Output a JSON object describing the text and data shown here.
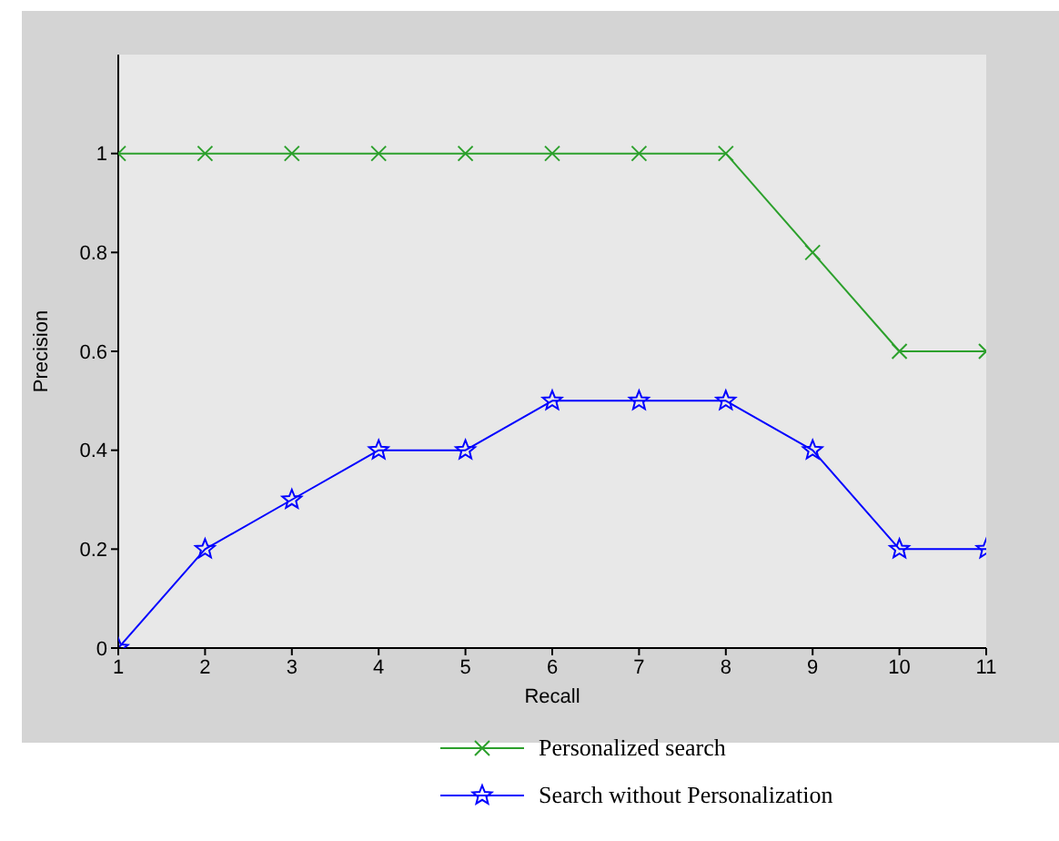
{
  "chart_data": {
    "type": "line",
    "xlabel": "Recall",
    "ylabel": "Precision",
    "x": [
      1,
      2,
      3,
      4,
      5,
      6,
      7,
      8,
      9,
      10,
      11
    ],
    "series": [
      {
        "name": "Personalized search",
        "color": "#2ca02c",
        "marker": "cross",
        "values": [
          1,
          1,
          1,
          1,
          1,
          1,
          1,
          1,
          0.8,
          0.6,
          0.6
        ]
      },
      {
        "name": "Search without Personalization",
        "color": "#0000ff",
        "marker": "star",
        "values": [
          0,
          0.2,
          0.3,
          0.4,
          0.4,
          0.5,
          0.5,
          0.5,
          0.4,
          0.2,
          0.2
        ]
      }
    ],
    "xlim": [
      1,
      11
    ],
    "xticks": [
      1,
      2,
      3,
      4,
      5,
      6,
      7,
      8,
      9,
      10,
      11
    ],
    "ylim": [
      0,
      1.2
    ],
    "yticks": [
      0,
      0.2,
      0.4,
      0.6,
      0.8,
      1
    ],
    "grid": false,
    "legend": "bottom"
  }
}
